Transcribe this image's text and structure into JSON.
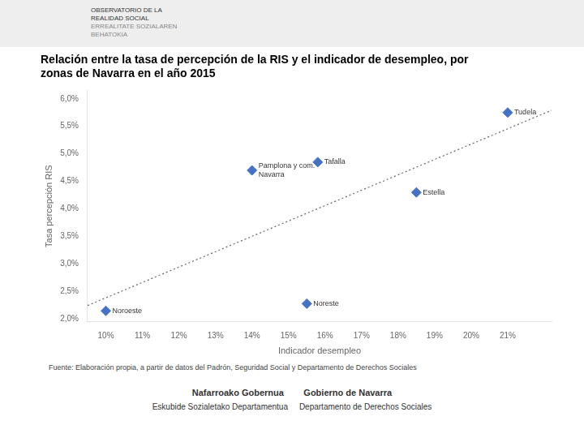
{
  "chart_data": {
    "type": "scatter",
    "title": [
      "Relación entre la tasa de percepción de la RIS y el indicador de desempleo, por",
      "zonas de Navarra en el año 2015"
    ],
    "x_label": "Indicador desempleo",
    "y_label": "Tasa percepción RIS",
    "header": [
      "OBSERVATORIO DE LA",
      "REALIDAD SOCIAL",
      "ERREALITATE SOZIALAREN",
      "BEHATOKIA"
    ],
    "footnote": "Fuente: Elaboración propia, a partir de datos del Padrón, Seguridad Social y Departamento de Derechos Sociales",
    "footer": [
      "Nafarroako Gobernua        Gobierno de Navarra",
      "Eskubide Sozialetako Departamentua     Departamento de Derechos Sociales"
    ],
    "x": [
      0.1,
      0.155,
      0.14,
      0.158,
      0.185,
      0.21
    ],
    "values": [
      0.0215,
      0.0228,
      0.047,
      0.0485,
      0.043,
      0.0575
    ],
    "labels": [
      "Noroeste",
      "Noreste",
      "Pamplona y com.\nNavarra",
      "Tafalla",
      "Estella",
      "Tudela"
    ],
    "color": "#4472C4",
    "marker": "diamond",
    "trendline": {
      "x": [
        0.095,
        0.222
      ],
      "values": [
        0.02247008,
        0.05790896
      ],
      "color": "#666666",
      "line_style": "dotted"
    },
    "xlim": [
      0.095,
      0.222
    ],
    "ylim": [
      0.0195,
      0.0615
    ],
    "xticks": [
      {
        "value": 0.1,
        "label": "10%"
      },
      {
        "value": 0.11,
        "label": "11%"
      },
      {
        "value": 0.12,
        "label": "12%"
      },
      {
        "value": 0.13,
        "label": "13%"
      },
      {
        "value": 0.14,
        "label": "14%"
      },
      {
        "value": 0.15,
        "label": "15%"
      },
      {
        "value": 0.16,
        "label": "16%"
      },
      {
        "value": 0.17,
        "label": "17%"
      },
      {
        "value": 0.18,
        "label": "18%"
      },
      {
        "value": 0.19,
        "label": "19%"
      },
      {
        "value": 0.2,
        "label": "20%"
      },
      {
        "value": 0.21,
        "label": "21%"
      }
    ],
    "yticks": [
      {
        "value": 0.02,
        "label": "2,0%"
      },
      {
        "value": 0.025,
        "label": "2,5%"
      },
      {
        "value": 0.03,
        "label": "3,0%"
      },
      {
        "value": 0.035,
        "label": "3,5%"
      },
      {
        "value": 0.04,
        "label": "4,0%"
      },
      {
        "value": 0.045,
        "label": "4,5%"
      },
      {
        "value": 0.05,
        "label": "5,0%"
      },
      {
        "value": 0.055,
        "label": "5,5%"
      },
      {
        "value": 0.06,
        "label": "6,0%"
      }
    ],
    "grid": false
  }
}
